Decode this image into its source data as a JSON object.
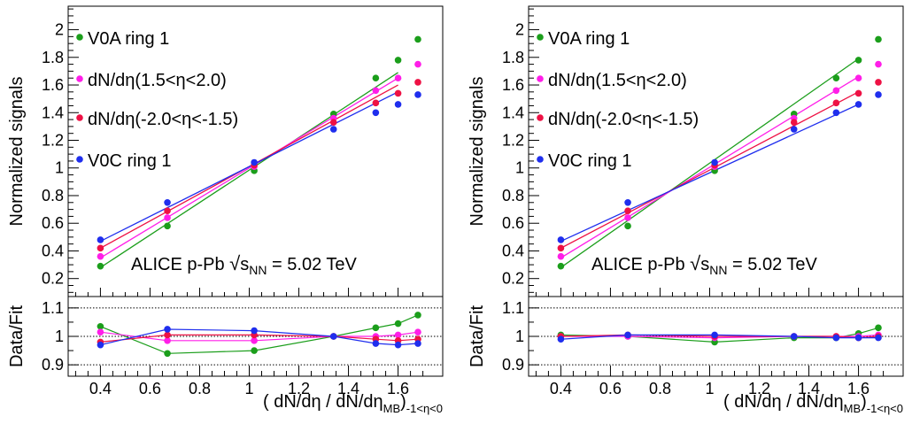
{
  "chart_data": [
    {
      "type": "scatter",
      "panel": "left",
      "annotation": {
        "prefix": "ALICE p-Pb ",
        "sqrt": "√",
        "s": "s",
        "sub": "NN",
        "suffix": " = 5.02 TeV"
      },
      "top": {
        "ylabel": "Normalized signals",
        "xlim": [
          0.27,
          1.78
        ],
        "ylim": [
          0.07,
          2.17
        ],
        "yticks": [
          0.2,
          0.4,
          0.6,
          0.8,
          1,
          1.2,
          1.4,
          1.6,
          1.8,
          2
        ],
        "yticklabels": [
          "0.2",
          "0.4",
          "0.6",
          "0.8",
          "1",
          "1.2",
          "1.4",
          "1.6",
          "1.8",
          "2"
        ],
        "x": [
          0.4,
          0.67,
          1.02,
          1.34,
          1.51,
          1.6,
          1.68
        ],
        "fit_x": [
          0.4,
          1.6
        ],
        "series": [
          {
            "name": "V0A ring 1",
            "color": "#1b9e1b",
            "values": [
              0.29,
              0.58,
              0.98,
              1.39,
              1.65,
              1.78,
              1.93
            ],
            "fit": [
              0.28,
              1.69
            ]
          },
          {
            "name": "dN/dη(1.5<η<2.0)",
            "color": "#ff1ee8",
            "values": [
              0.36,
              0.64,
              1.01,
              1.36,
              1.56,
              1.65,
              1.75
            ],
            "fit": [
              0.35,
              1.65
            ]
          },
          {
            "name": "dN/dη(-2.0<η<-1.5)",
            "color": "#ee1144",
            "values": [
              0.42,
              0.69,
              1.02,
              1.33,
              1.47,
              1.54,
              1.62
            ],
            "fit": [
              0.42,
              1.6
            ]
          },
          {
            "name": "V0C ring 1",
            "color": "#1f2eee",
            "values": [
              0.48,
              0.75,
              1.04,
              1.28,
              1.4,
              1.46,
              1.53
            ],
            "fit": [
              0.47,
              1.55
            ]
          }
        ]
      },
      "bottom": {
        "ylabel": "Data/Fit",
        "ylim": [
          0.86,
          1.14
        ],
        "yticks": [
          0.9,
          1,
          1.1
        ],
        "yticklabels": [
          "0.9",
          "1",
          "1.1"
        ],
        "xticks": [
          0.4,
          0.6,
          0.8,
          1,
          1.2,
          1.4,
          1.6
        ],
        "xticklabels": [
          "0.4",
          "0.6",
          "0.8",
          "1",
          "1.2",
          "1.4",
          "1.6"
        ],
        "xlabel": {
          "main": "( dN/dη / dN/dη",
          "sub1": "MB",
          "close": ")",
          "sub2": "-1<η<0"
        },
        "x": [
          0.4,
          0.67,
          1.02,
          1.34,
          1.51,
          1.6,
          1.68
        ],
        "series": [
          {
            "name": "V0A ring 1",
            "color": "#1b9e1b",
            "values": [
              1.035,
              0.94,
              0.95,
              1.0,
              1.03,
              1.045,
              1.075
            ]
          },
          {
            "name": "dN/dη(1.5<η<2.0)",
            "color": "#ff1ee8",
            "values": [
              1.015,
              0.985,
              0.985,
              1.0,
              1.0,
              1.005,
              1.015
            ]
          },
          {
            "name": "dN/dη(-2.0<η<-1.5)",
            "color": "#ee1144",
            "values": [
              0.98,
              1.005,
              1.005,
              1.0,
              0.99,
              0.985,
              0.99
            ]
          },
          {
            "name": "V0C ring 1",
            "color": "#1f2eee",
            "values": [
              0.97,
              1.025,
              1.02,
              1.0,
              0.975,
              0.97,
              0.975
            ]
          }
        ]
      }
    },
    {
      "type": "scatter",
      "panel": "right",
      "annotation": {
        "prefix": "ALICE p-Pb ",
        "sqrt": "√",
        "s": "s",
        "sub": "NN",
        "suffix": " = 5.02 TeV"
      },
      "top": {
        "ylabel": "Normalized signals",
        "xlim": [
          0.27,
          1.78
        ],
        "ylim": [
          0.07,
          2.17
        ],
        "yticks": [
          0.2,
          0.4,
          0.6,
          0.8,
          1,
          1.2,
          1.4,
          1.6,
          1.8,
          2
        ],
        "yticklabels": [
          "0.2",
          "0.4",
          "0.6",
          "0.8",
          "1",
          "1.2",
          "1.4",
          "1.6",
          "1.8",
          "2"
        ],
        "x": [
          0.4,
          0.67,
          1.02,
          1.34,
          1.51,
          1.6,
          1.68
        ],
        "fit_x": [
          0.4,
          1.6
        ],
        "series": [
          {
            "name": "V0A ring 1",
            "color": "#1b9e1b",
            "values": [
              0.29,
              0.58,
              0.98,
              1.39,
              1.65,
              1.78,
              1.93
            ],
            "fit": [
              0.28,
              1.79
            ]
          },
          {
            "name": "dN/dη(1.5<η<2.0)",
            "color": "#ff1ee8",
            "values": [
              0.36,
              0.64,
              1.01,
              1.36,
              1.56,
              1.65,
              1.75
            ],
            "fit": [
              0.35,
              1.66
            ]
          },
          {
            "name": "dN/dη(-2.0<η<-1.5)",
            "color": "#ee1144",
            "values": [
              0.42,
              0.69,
              1.02,
              1.33,
              1.47,
              1.54,
              1.62
            ],
            "fit": [
              0.42,
              1.55
            ]
          },
          {
            "name": "V0C ring 1",
            "color": "#1f2eee",
            "values": [
              0.48,
              0.75,
              1.04,
              1.28,
              1.4,
              1.46,
              1.53
            ],
            "fit": [
              0.47,
              1.46
            ]
          }
        ]
      },
      "bottom": {
        "ylabel": "Data/Fit",
        "ylim": [
          0.86,
          1.14
        ],
        "yticks": [
          0.9,
          1,
          1.1
        ],
        "yticklabels": [
          "0.9",
          "1",
          "1.1"
        ],
        "xticks": [
          0.4,
          0.6,
          0.8,
          1,
          1.2,
          1.4,
          1.6
        ],
        "xticklabels": [
          "0.4",
          "0.6",
          "0.8",
          "1",
          "1.2",
          "1.4",
          "1.6"
        ],
        "xlabel": {
          "main": "( dN/dη / dN/dη",
          "sub1": "MB",
          "close": ")",
          "sub2": "-1<η<0"
        },
        "x": [
          0.4,
          0.67,
          1.02,
          1.34,
          1.51,
          1.6,
          1.68
        ],
        "series": [
          {
            "name": "V0A ring 1",
            "color": "#1b9e1b",
            "values": [
              1.005,
              1.0,
              0.98,
              0.995,
              0.995,
              1.01,
              1.03
            ]
          },
          {
            "name": "dN/dη(1.5<η<2.0)",
            "color": "#ff1ee8",
            "values": [
              1.0,
              1.0,
              0.995,
              1.0,
              1.0,
              1.0,
              1.005
            ]
          },
          {
            "name": "dN/dη(-2.0<η<-1.5)",
            "color": "#ee1144",
            "values": [
              1.0,
              1.005,
              1.0,
              1.0,
              1.0,
              0.995,
              1.0
            ]
          },
          {
            "name": "V0C ring 1",
            "color": "#1f2eee",
            "values": [
              0.99,
              1.005,
              1.005,
              1.0,
              0.995,
              0.995,
              0.995
            ]
          }
        ]
      }
    }
  ]
}
